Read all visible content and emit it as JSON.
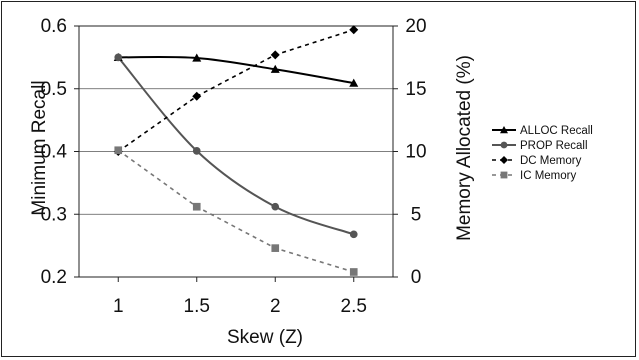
{
  "chart_data": {
    "type": "line",
    "title": "",
    "xlabel": "Skew (Z)",
    "ylabel": "Minimum Recall",
    "y2label": "Memory Allocated (%)",
    "x": [
      1,
      1.5,
      2,
      2.5
    ],
    "x_tick_labels": [
      "1",
      "1.5",
      "2",
      "2.5"
    ],
    "ylim": [
      0.2,
      0.6
    ],
    "y_tick_labels": [
      "0.2",
      "0.3",
      "0.4",
      "0.5",
      "0.6"
    ],
    "y2lim": [
      0,
      20
    ],
    "y2_tick_labels": [
      "0",
      "5",
      "10",
      "15",
      "20"
    ],
    "grid": "horizontal major gridlines",
    "legend_position": "right",
    "series": [
      {
        "name": "ALLOC Recall",
        "axis": "left",
        "values": [
          0.55,
          0.549,
          0.531,
          0.509
        ],
        "color": "#000000",
        "marker": "triangle",
        "dashed": false
      },
      {
        "name": "PROP Recall",
        "axis": "left",
        "values": [
          0.55,
          0.401,
          0.312,
          0.268
        ],
        "color": "#555555",
        "marker": "circle",
        "dashed": false
      },
      {
        "name": "DC Memory",
        "axis": "right",
        "values": [
          10.0,
          14.4,
          17.7,
          19.7
        ],
        "color": "#000000",
        "marker": "diamond",
        "dashed": true
      },
      {
        "name": "IC Memory",
        "axis": "right",
        "values": [
          10.1,
          5.6,
          2.3,
          0.4
        ],
        "color": "#777777",
        "marker": "square",
        "dashed": true
      }
    ]
  }
}
